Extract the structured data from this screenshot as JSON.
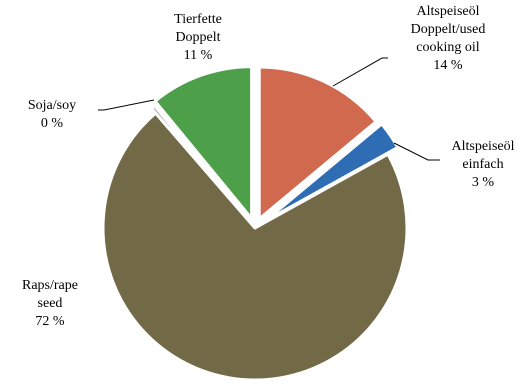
{
  "chart_data": {
    "type": "pie",
    "title": "",
    "categories": [
      "Altspeiseöl Doppelt/used cooking oil",
      "Altspeiseöl einfach",
      "Raps/rape seed",
      "Soja/soy",
      "Tierfette Doppelt"
    ],
    "values": [
      14,
      3,
      72,
      0,
      11
    ],
    "unit": "%",
    "exploded": true,
    "start_angle_deg": 0,
    "direction": "clockwise",
    "legend": "none (labels next to slices)",
    "slices": [
      {
        "name": "Altspeiseöl Doppelt/used cooking oil",
        "label_lines": [
          "Altspeiseöl",
          "Doppelt/used",
          "cooking oil"
        ],
        "value_label": "14 %",
        "value": 14,
        "color": "#D0694E"
      },
      {
        "name": "Altspeiseöl einfach",
        "label_lines": [
          "Altspeiseöl",
          "einfach"
        ],
        "value_label": "3 %",
        "value": 3,
        "color": "#2E6DB4"
      },
      {
        "name": "Raps/rape seed",
        "label_lines": [
          "Raps/rape",
          "seed"
        ],
        "value_label": "72 %",
        "value": 72,
        "color": "#726A47"
      },
      {
        "name": "Soja/soy",
        "label_lines": [
          "Soja/soy"
        ],
        "value_label": "0 %",
        "value": 0.4,
        "color": "#7F7F7F"
      },
      {
        "name": "Tierfette Doppelt",
        "label_lines": [
          "Tierfette",
          "Doppelt"
        ],
        "value_label": "11 %",
        "value": 11,
        "color": "#4E9F4A"
      }
    ]
  }
}
